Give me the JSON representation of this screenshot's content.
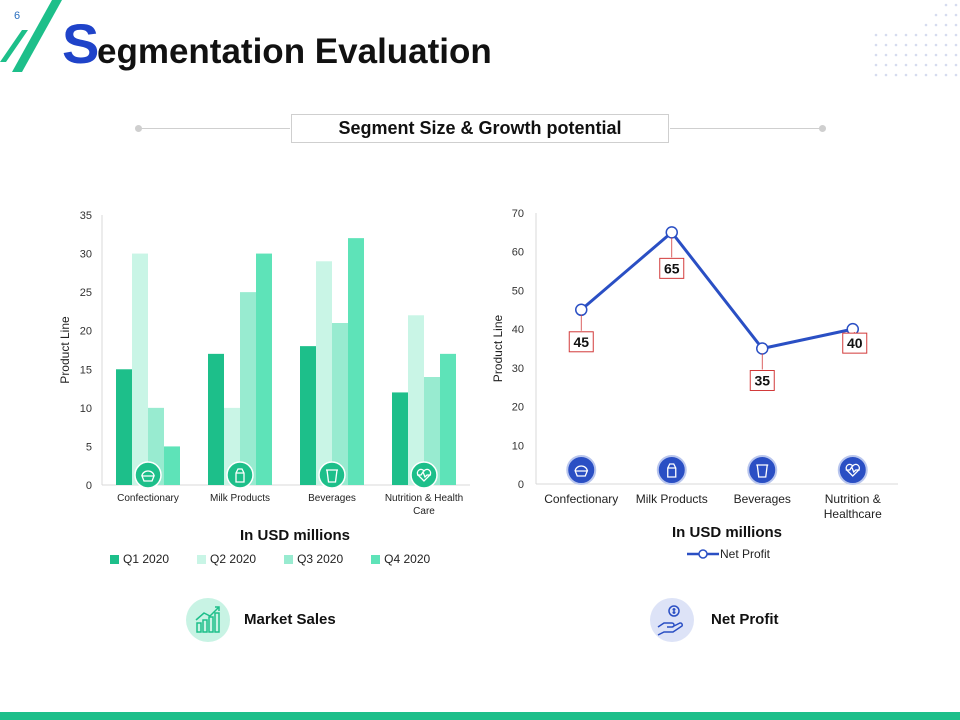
{
  "slide": {
    "number": "6",
    "title_first_letter": "S",
    "title_rest": "egmentation Evaluation",
    "subtitle": "Segment Size & Growth potential"
  },
  "colors": {
    "accent_blue": "#1f43c9",
    "green": "#1dbf8a",
    "line_blue": "#2a4fc4"
  },
  "chart_data": [
    {
      "type": "bar",
      "categories": [
        "Confectionary",
        "Milk Products",
        "Beverages",
        "Nutrition & Health Care"
      ],
      "category_icons": [
        "pie-icon",
        "milk-carton-icon",
        "cup-icon",
        "heart-pulse-icon"
      ],
      "series": [
        {
          "name": "Q1 2020",
          "values": [
            15,
            17,
            18,
            12
          ],
          "color": "#1dbf8a"
        },
        {
          "name": "Q2 2020",
          "values": [
            30,
            10,
            29,
            22
          ],
          "color": "#c9f5e6"
        },
        {
          "name": "Q3 2020",
          "values": [
            10,
            25,
            21,
            14
          ],
          "color": "#98ebd0"
        },
        {
          "name": "Q4 2020",
          "values": [
            5,
            30,
            32,
            17
          ],
          "color": "#5ee3b8"
        }
      ],
      "ylabel": "Product Line",
      "xlabel": "In USD millions",
      "ylim": [
        0,
        35
      ],
      "yticks": [
        0,
        5,
        10,
        15,
        20,
        25,
        30,
        35
      ],
      "legend": "bottom",
      "grid": false
    },
    {
      "type": "line",
      "categories": [
        "Confectionary",
        "Milk Products",
        "Beverages",
        "Nutrition & Healthcare"
      ],
      "category_icons": [
        "pie-icon",
        "milk-carton-icon",
        "cup-icon",
        "heart-pulse-icon"
      ],
      "series": [
        {
          "name": "Net Profit",
          "values": [
            45,
            65,
            35,
            40
          ],
          "color": "#2a4fc4"
        }
      ],
      "ylabel": "Product Line",
      "xlabel": "In USD millions",
      "ylim": [
        0,
        70
      ],
      "yticks": [
        0,
        10,
        20,
        30,
        40,
        50,
        60,
        70
      ],
      "legend": "bottom",
      "grid": false
    }
  ],
  "footer": {
    "left_label": "Market Sales",
    "left_icon": "growth-chart-icon",
    "right_label": "Net Profit",
    "right_icon": "money-hand-icon"
  }
}
